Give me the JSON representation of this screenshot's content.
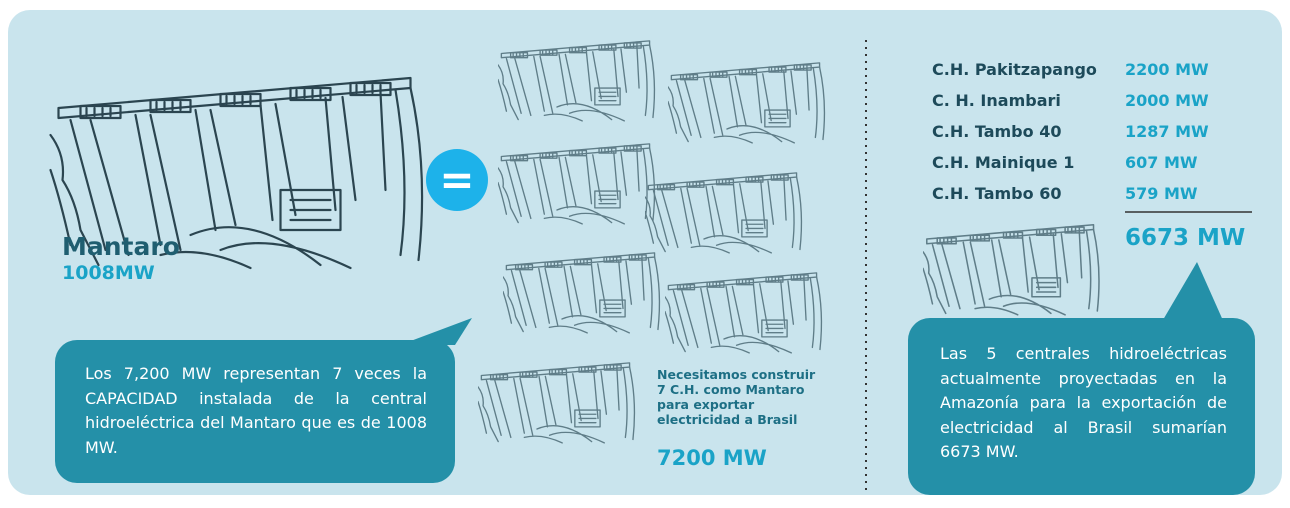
{
  "equals": "=",
  "left": {
    "name": "Mantaro",
    "capacity": "1008MW",
    "note": "Los 7,200 MW representan 7 veces la CAPACIDAD instalada de la central hidroeléctrica del Mantaro que es de 1008 MW."
  },
  "middle": {
    "caption": [
      "Necesitamos construir",
      "7 C.H. como Mantaro",
      "para exportar",
      "electricidad a Brasil"
    ],
    "total": "7200 MW"
  },
  "right": {
    "rows": [
      {
        "name": "C.H. Pakitzapango",
        "value": "2200 MW"
      },
      {
        "name": "C. H. Inambari",
        "value": "2000 MW"
      },
      {
        "name": "C.H. Tambo 40",
        "value": "1287 MW"
      },
      {
        "name": "C.H. Mainique 1",
        "value": "607 MW"
      },
      {
        "name": "C.H. Tambo 60",
        "value": "579 MW"
      }
    ],
    "total": "6673 MW",
    "note": "Las 5 centrales hidroeléctricas actualmente proyectadas en la Amazonía para la exportación de electricidad al Brasil sumarían 6673 MW."
  }
}
